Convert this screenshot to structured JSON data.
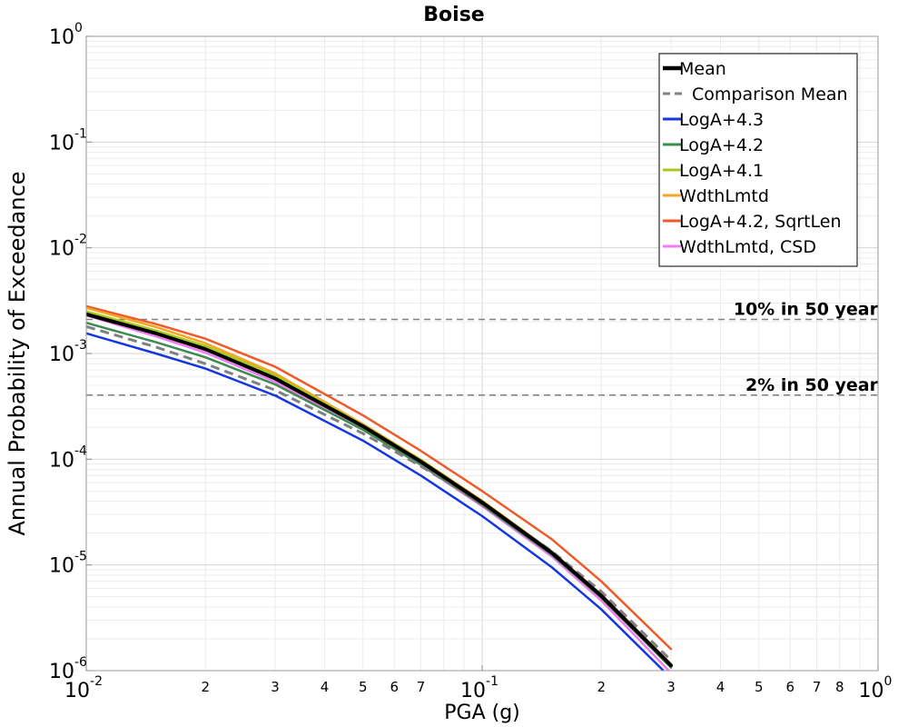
{
  "chart_data": {
    "type": "line",
    "title": "Boise",
    "xlabel": "PGA (g)",
    "ylabel": "Annual Probability of Exceedance",
    "xscale": "log",
    "yscale": "log",
    "xlim": [
      0.01,
      1.0
    ],
    "ylim": [
      1e-06,
      1.0
    ],
    "grid": true,
    "legend_position": "top-right",
    "x_major_ticks": [
      {
        "base": "10",
        "exp": "-2"
      },
      {
        "base": "10",
        "exp": "-1"
      },
      {
        "base": "10",
        "exp": "0"
      }
    ],
    "x_minor_tick_labels": [
      {
        "v": 0.02,
        "t": "2"
      },
      {
        "v": 0.03,
        "t": "3"
      },
      {
        "v": 0.04,
        "t": "4"
      },
      {
        "v": 0.05,
        "t": "5"
      },
      {
        "v": 0.06,
        "t": "6"
      },
      {
        "v": 0.07,
        "t": "7"
      },
      {
        "v": 0.2,
        "t": "2"
      },
      {
        "v": 0.3,
        "t": "3"
      },
      {
        "v": 0.4,
        "t": "4"
      },
      {
        "v": 0.5,
        "t": "5"
      },
      {
        "v": 0.6,
        "t": "6"
      },
      {
        "v": 0.7,
        "t": "7"
      },
      {
        "v": 0.8,
        "t": "8"
      }
    ],
    "y_major_ticks": [
      {
        "base": "10",
        "exp": "0"
      },
      {
        "base": "10",
        "exp": "-1"
      },
      {
        "base": "10",
        "exp": "-2"
      },
      {
        "base": "10",
        "exp": "-3"
      },
      {
        "base": "10",
        "exp": "-4"
      },
      {
        "base": "10",
        "exp": "-5"
      },
      {
        "base": "10",
        "exp": "-6"
      }
    ],
    "reference_lines": [
      {
        "label": "10% in 50 year",
        "y": 0.0021,
        "color": "#808080"
      },
      {
        "label": "2% in 50 year",
        "y": 0.000404,
        "color": "#808080"
      }
    ],
    "series": [
      {
        "name": "Mean",
        "color": "#000000",
        "dash": "solid",
        "width": 4,
        "x": [
          0.01,
          0.015,
          0.02,
          0.03,
          0.05,
          0.07,
          0.1,
          0.15,
          0.2,
          0.3
        ],
        "y": [
          0.00235,
          0.00155,
          0.0011,
          0.00058,
          0.000205,
          9.5e-05,
          3.9e-05,
          1.3e-05,
          5.1e-06,
          1.12e-06
        ]
      },
      {
        "name": "Comparison Mean",
        "color": "#808080",
        "dash": "dashed",
        "width": 3,
        "x": [
          0.01,
          0.015,
          0.02,
          0.03,
          0.05,
          0.07,
          0.1,
          0.15,
          0.2,
          0.3
        ],
        "y": [
          0.0018,
          0.00115,
          0.0008,
          0.00045,
          0.000175,
          8.6e-05,
          3.8e-05,
          1.35e-05,
          5.6e-06,
          1.25e-06
        ]
      },
      {
        "name": "LogA+4.3",
        "color": "#1437e0",
        "dash": "solid",
        "width": 2.5,
        "x": [
          0.01,
          0.015,
          0.02,
          0.03,
          0.05,
          0.07,
          0.1,
          0.15,
          0.2,
          0.3
        ],
        "y": [
          0.00155,
          0.001,
          0.00072,
          0.0004,
          0.00015,
          7e-05,
          2.9e-05,
          9.5e-06,
          3.8e-06,
          8.5e-07
        ]
      },
      {
        "name": "LogA+4.2",
        "color": "#3c8c50",
        "dash": "solid",
        "width": 2.5,
        "x": [
          0.01,
          0.015,
          0.02,
          0.03,
          0.05,
          0.07,
          0.1,
          0.15,
          0.2,
          0.3
        ],
        "y": [
          0.00195,
          0.00128,
          0.00092,
          0.00051,
          0.00019,
          8.9e-05,
          3.7e-05,
          1.25e-05,
          4.9e-06,
          1.07e-06
        ]
      },
      {
        "name": "LogA+4.1",
        "color": "#a8c81e",
        "dash": "solid",
        "width": 2.5,
        "x": [
          0.01,
          0.015,
          0.02,
          0.03,
          0.05,
          0.07,
          0.1,
          0.15,
          0.2,
          0.3
        ],
        "y": [
          0.0025,
          0.00165,
          0.00118,
          0.00062,
          0.00021,
          9.8e-05,
          4e-05,
          1.33e-05,
          5.2e-06,
          1.14e-06
        ]
      },
      {
        "name": "WdthLmtd",
        "color": "#f5a623",
        "dash": "solid",
        "width": 2.5,
        "x": [
          0.01,
          0.015,
          0.02,
          0.03,
          0.05,
          0.07,
          0.1,
          0.15,
          0.2,
          0.3
        ],
        "y": [
          0.0027,
          0.00178,
          0.00125,
          0.00065,
          0.000215,
          9.9e-05,
          4.05e-05,
          1.34e-05,
          5.25e-06,
          1.15e-06
        ]
      },
      {
        "name": "LogA+4.2, SqrtLen",
        "color": "#ee5a28",
        "dash": "solid",
        "width": 2.5,
        "x": [
          0.01,
          0.015,
          0.02,
          0.03,
          0.05,
          0.07,
          0.1,
          0.15,
          0.2,
          0.3
        ],
        "y": [
          0.0028,
          0.0019,
          0.00138,
          0.00075,
          0.00026,
          0.00012,
          5e-05,
          1.75e-05,
          7e-06,
          1.6e-06
        ]
      },
      {
        "name": "WdthLmtd, CSD",
        "color": "#f07cf0",
        "dash": "solid",
        "width": 2.5,
        "x": [
          0.01,
          0.015,
          0.02,
          0.03,
          0.05,
          0.07,
          0.1,
          0.15,
          0.2,
          0.3
        ],
        "y": [
          0.0023,
          0.00145,
          0.00102,
          0.00054,
          0.00019,
          8.8e-05,
          3.6e-05,
          1.2e-05,
          4.6e-06,
          9.5e-07
        ]
      }
    ]
  }
}
